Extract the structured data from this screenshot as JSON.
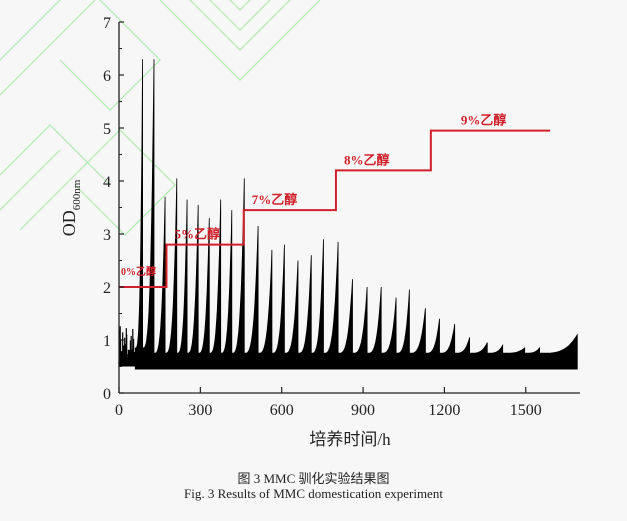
{
  "chart_data": {
    "type": "line",
    "title": "",
    "xlabel": "培养时间/h",
    "ylabel": "OD",
    "ylabel_subscript": "600nm",
    "xlim": [
      0,
      1700
    ],
    "ylim": [
      0,
      7
    ],
    "x_ticks": [
      "0",
      "300",
      "600",
      "900",
      "1200",
      "1500"
    ],
    "x_tick_values": [
      0,
      300,
      600,
      900,
      1200,
      1500
    ],
    "y_ticks": [
      "0",
      "1",
      "2",
      "3",
      "4",
      "5",
      "6",
      "7"
    ],
    "y_tick_values": [
      0,
      1,
      2,
      3,
      4,
      5,
      6,
      7
    ],
    "grid": false,
    "baseline_od": 0.5,
    "od_series_peaks": [
      {
        "t": 87,
        "od": 6.3
      },
      {
        "t": 129,
        "od": 6.3
      },
      {
        "t": 170,
        "od": 3.7
      },
      {
        "t": 213,
        "od": 4.05
      },
      {
        "t": 251,
        "od": 3.65
      },
      {
        "t": 292,
        "od": 3.55
      },
      {
        "t": 333,
        "od": 3.3
      },
      {
        "t": 375,
        "od": 3.65
      },
      {
        "t": 416,
        "od": 3.45
      },
      {
        "t": 462,
        "od": 4.05
      },
      {
        "t": 513,
        "od": 3.15
      },
      {
        "t": 564,
        "od": 2.7
      },
      {
        "t": 610,
        "od": 2.8
      },
      {
        "t": 660,
        "od": 2.5
      },
      {
        "t": 709,
        "od": 2.6
      },
      {
        "t": 754,
        "od": 2.9
      },
      {
        "t": 808,
        "od": 2.85
      },
      {
        "t": 861,
        "od": 2.15
      },
      {
        "t": 915,
        "od": 2.0
      },
      {
        "t": 967,
        "od": 2.0
      },
      {
        "t": 1022,
        "od": 1.8
      },
      {
        "t": 1071,
        "od": 1.95
      },
      {
        "t": 1130,
        "od": 1.6
      },
      {
        "t": 1182,
        "od": 1.4
      },
      {
        "t": 1238,
        "od": 1.3
      },
      {
        "t": 1293,
        "od": 1.05
      },
      {
        "t": 1358,
        "od": 0.95
      },
      {
        "t": 1415,
        "od": 0.9
      },
      {
        "t": 1496,
        "od": 0.85
      },
      {
        "t": 1551,
        "od": 0.85
      },
      {
        "t": 1690,
        "od": 1.1
      }
    ],
    "ethanol_steps": [
      {
        "label": "0%乙醇",
        "level": 2.0,
        "start": 0,
        "end": 175
      },
      {
        "label": "5%乙醇",
        "level": 2.8,
        "start": 175,
        "end": 460
      },
      {
        "label": "7%乙醇",
        "level": 3.45,
        "start": 460,
        "end": 800
      },
      {
        "label": "8%乙醇",
        "level": 4.2,
        "start": 800,
        "end": 1150
      },
      {
        "label": "9%乙醇",
        "level": 4.95,
        "start": 1150,
        "end": 1590
      }
    ],
    "colors": {
      "od": "#000000",
      "ethanol": "#d0202a",
      "axis": "#222222"
    }
  },
  "caption": {
    "cn": "图 3 MMC 驯化实验结果图",
    "en": "Fig. 3 Results of MMC domestication experiment"
  }
}
